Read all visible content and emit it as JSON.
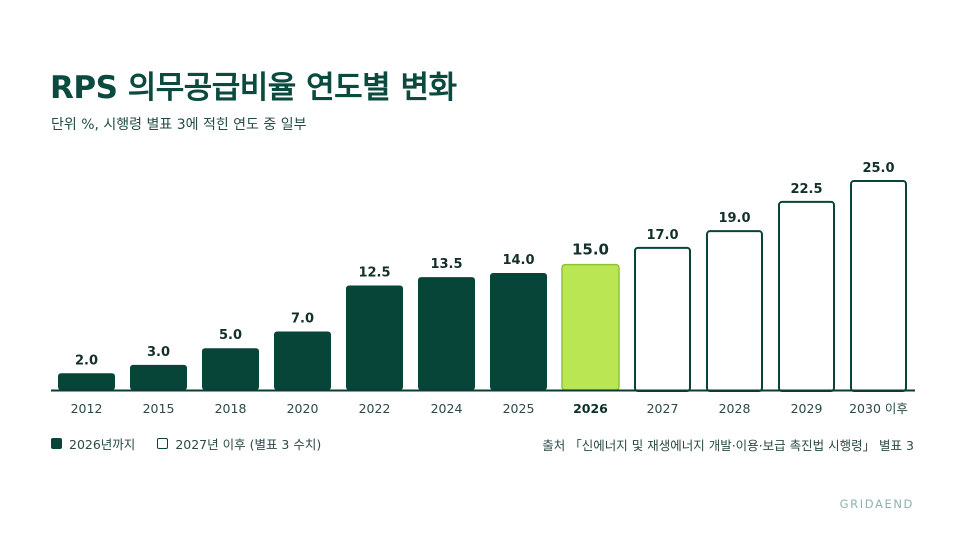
{
  "header": {
    "title": "RPS 의무공급비율 연도별 변화",
    "subtitle": "단위 %, 시행령 별표 3에 적힌 연도 중 일부"
  },
  "legend": {
    "until_2026": "2026년까지",
    "from_2027": "2027년 이후 (별표 3 수치)"
  },
  "source": "출처 「신에너지 및 재생에너지 개발·이용·보급 촉진법 시행령」 별표 3",
  "brand": "GRIDAEND",
  "colors": {
    "past": "#074539",
    "current": "#b9e652",
    "current_border": "#8fc23a",
    "future_outline": "#074539",
    "axis": "#0b3b33"
  },
  "chart_data": {
    "type": "bar",
    "title": "RPS 의무공급비율 연도별 변화",
    "categories": [
      "2012",
      "2015",
      "2018",
      "2020",
      "2022",
      "2024",
      "2025",
      "2026",
      "2027",
      "2028",
      "2029",
      "2030 이후"
    ],
    "values": [
      2.0,
      3.0,
      5.0,
      7.0,
      12.5,
      13.5,
      14.0,
      15.0,
      17.0,
      19.0,
      22.5,
      25.0
    ],
    "value_labels": [
      "2.0",
      "3.0",
      "5.0",
      "7.0",
      "12.5",
      "13.5",
      "14.0",
      "15.0",
      "17.0",
      "19.0",
      "22.5",
      "25.0"
    ],
    "styles": [
      "past",
      "past",
      "past",
      "past",
      "past",
      "past",
      "past",
      "current",
      "future",
      "future",
      "future",
      "future"
    ],
    "highlight_category": "2026",
    "ylim": [
      0,
      25
    ],
    "grid": false,
    "legend_position": "bottom-left"
  }
}
